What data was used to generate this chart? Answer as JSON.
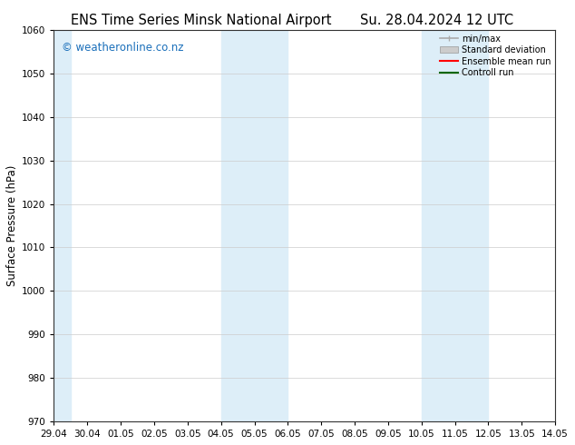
{
  "title_left": "ENS Time Series Minsk National Airport",
  "title_right": "Su. 28.04.2024 12 UTC",
  "ylabel": "Surface Pressure (hPa)",
  "ylim": [
    970,
    1060
  ],
  "yticks": [
    970,
    980,
    990,
    1000,
    1010,
    1020,
    1030,
    1040,
    1050,
    1060
  ],
  "xtick_labels": [
    "29.04",
    "30.04",
    "01.05",
    "02.05",
    "03.05",
    "04.05",
    "05.05",
    "06.05",
    "07.05",
    "08.05",
    "09.05",
    "10.05",
    "11.05",
    "12.05",
    "13.05",
    "14.05"
  ],
  "xlim_start": 0,
  "xlim_end": 15,
  "shaded_bands": [
    {
      "x_start": 0,
      "x_end": 0.5,
      "color": "#ddeef8"
    },
    {
      "x_start": 5,
      "x_end": 7,
      "color": "#ddeef8"
    },
    {
      "x_start": 11,
      "x_end": 13,
      "color": "#ddeef8"
    }
  ],
  "watermark_text": "© weatheronline.co.nz",
  "watermark_color": "#1a6fba",
  "background_color": "#ffffff",
  "legend_items": [
    {
      "label": "min/max",
      "color": "#aaaaaa",
      "style": "line_with_caps"
    },
    {
      "label": "Standard deviation",
      "color": "#cccccc",
      "style": "filled_rect"
    },
    {
      "label": "Ensemble mean run",
      "color": "#ff0000",
      "style": "line"
    },
    {
      "label": "Controll run",
      "color": "#006600",
      "style": "line"
    }
  ],
  "title_fontsize": 10.5,
  "tick_fontsize": 7.5,
  "ylabel_fontsize": 8.5,
  "watermark_fontsize": 8.5,
  "legend_fontsize": 7.0
}
